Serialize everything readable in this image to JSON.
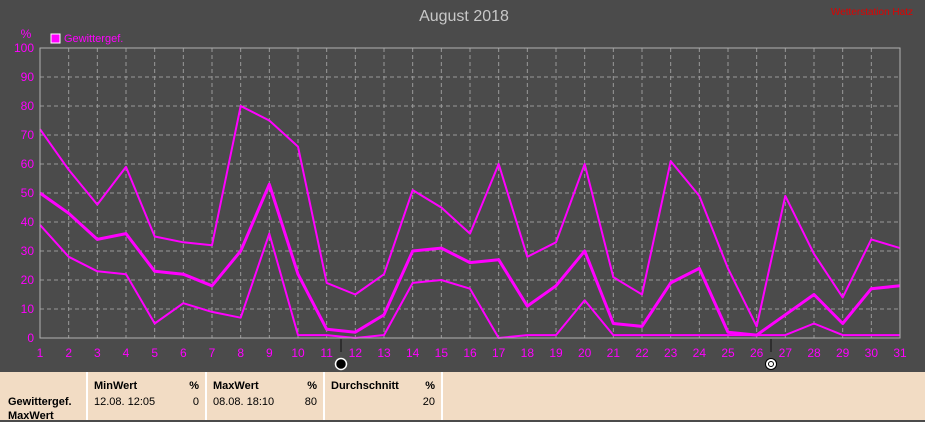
{
  "title": "August 2018",
  "watermark": "Wetterstation Hatz",
  "colors": {
    "series": "#ff00ff",
    "background": "#4b4b4b",
    "panel": "#f2dcc4"
  },
  "chart_data": {
    "type": "line",
    "ylabel": "%",
    "ylim": [
      0,
      100
    ],
    "yticks": [
      0,
      10,
      20,
      30,
      40,
      50,
      60,
      70,
      80,
      90,
      100
    ],
    "x": [
      1,
      2,
      3,
      4,
      5,
      6,
      7,
      8,
      9,
      10,
      11,
      12,
      13,
      14,
      15,
      16,
      17,
      18,
      19,
      20,
      21,
      22,
      23,
      24,
      25,
      26,
      27,
      28,
      29,
      30,
      31
    ],
    "xticks": [
      "1",
      "2",
      "3",
      "4",
      "5",
      "6",
      "7",
      "8",
      "9",
      "10",
      "11",
      "12",
      "13",
      "14",
      "15",
      "16",
      "17",
      "18",
      "19",
      "20",
      "21",
      "22",
      "23",
      "24",
      "25",
      "26",
      "27",
      "28",
      "29",
      "30",
      "31"
    ],
    "legend": [
      {
        "label": "Gewittergef.",
        "color": "#ff00ff"
      }
    ],
    "series": [
      {
        "name": "Gewittergef. Max",
        "values": [
          72,
          58,
          46,
          59,
          35,
          33,
          32,
          80,
          75,
          66,
          19,
          15,
          22,
          51,
          45,
          36,
          60,
          28,
          33,
          60,
          21,
          15,
          61,
          49,
          24,
          4,
          49,
          29,
          14,
          34,
          31
        ]
      },
      {
        "name": "Gewittergef.",
        "values": [
          50,
          43,
          34,
          36,
          23,
          22,
          18,
          30,
          53,
          22,
          3,
          2,
          8,
          30,
          31,
          26,
          27,
          11,
          18,
          30,
          5,
          4,
          19,
          24,
          2,
          1,
          8,
          15,
          5,
          17,
          18
        ]
      },
      {
        "name": "Gewittergef. Min",
        "values": [
          39,
          28,
          23,
          22,
          5,
          12,
          9,
          7,
          36,
          1,
          1,
          0,
          1,
          19,
          20,
          17,
          0,
          1,
          1,
          13,
          1,
          1,
          1,
          1,
          1,
          1,
          1,
          5,
          1,
          1,
          1
        ]
      }
    ],
    "markers": [
      {
        "x": 11.5,
        "icon": "new-moon-icon"
      },
      {
        "x": 26.5,
        "icon": "full-moon-icon"
      }
    ]
  },
  "stats": {
    "row_label_1": "Gewittergef.",
    "row_label_2": "MaxWert",
    "min_header": "MinWert",
    "min_unit": "%",
    "min_time": "12.08.  12:05",
    "min_value": "0",
    "max_header": "MaxWert",
    "max_unit": "%",
    "max_time": "08.08.  18:10",
    "max_value": "80",
    "avg_header": "Durchschnitt",
    "avg_unit": "%",
    "avg_value": "20"
  }
}
